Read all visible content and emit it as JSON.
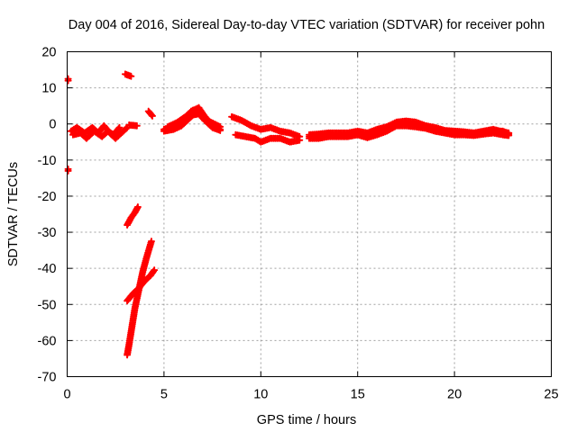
{
  "chart_data": {
    "type": "scatter",
    "title": "Day 004 of 2016, Sidereal Day-to-day VTEC variation (SDTVAR) for receiver pohn",
    "xlabel": "GPS time / hours",
    "ylabel": "SDTVAR / TECUs",
    "xlim": [
      0,
      25
    ],
    "ylim": [
      -70,
      20
    ],
    "xticks": [
      0,
      5,
      10,
      15,
      20,
      25
    ],
    "yticks": [
      -70,
      -60,
      -50,
      -40,
      -30,
      -20,
      -10,
      0,
      10,
      20
    ],
    "x_tick_labels": [
      "0",
      "5",
      "10",
      "15",
      "20",
      "25"
    ],
    "y_tick_labels": [
      "-70",
      "-60",
      "-50",
      "-40",
      "-30",
      "-20",
      "-10",
      "0",
      "10",
      "20"
    ],
    "grid": true,
    "marker": "plus",
    "color": "#ff0000",
    "series": [
      {
        "name": "SDTVAR",
        "tracks": [
          [
            [
              0.05,
              12.5
            ]
          ],
          [
            [
              0.05,
              -12.5
            ]
          ],
          [
            [
              0.2,
              -2
            ],
            [
              0.5,
              -1
            ],
            [
              0.9,
              -2.5
            ],
            [
              1.3,
              -1
            ],
            [
              1.6,
              -2.5
            ],
            [
              1.9,
              -0.5
            ],
            [
              2.2,
              -2.5
            ],
            [
              2.5,
              -4
            ],
            [
              2.9,
              -2
            ],
            [
              3.1,
              -1
            ]
          ],
          [
            [
              0.3,
              -3
            ],
            [
              0.7,
              -2.5
            ],
            [
              1.0,
              -4
            ],
            [
              1.4,
              -2
            ],
            [
              1.8,
              -3.5
            ],
            [
              2.1,
              -2
            ],
            [
              2.4,
              -3
            ],
            [
              2.7,
              -1
            ]
          ],
          [
            [
              3.0,
              13.8
            ],
            [
              3.3,
              13.2
            ]
          ],
          [
            [
              3.2,
              -0.3
            ],
            [
              3.6,
              -0.5
            ]
          ],
          [
            [
              4.2,
              3.5
            ],
            [
              4.4,
              2.2
            ]
          ],
          [
            [
              3.1,
              -28
            ],
            [
              3.3,
              -26
            ],
            [
              3.5,
              -24.5
            ],
            [
              3.65,
              -23
            ]
          ],
          [
            [
              3.1,
              -64
            ],
            [
              3.2,
              -61
            ],
            [
              3.35,
              -56
            ],
            [
              3.5,
              -51
            ],
            [
              3.7,
              -46
            ],
            [
              3.9,
              -41
            ],
            [
              4.1,
              -37
            ],
            [
              4.35,
              -32.5
            ]
          ],
          [
            [
              3.1,
              -49
            ],
            [
              3.4,
              -47
            ],
            [
              3.7,
              -45.5
            ],
            [
              4.0,
              -43.5
            ],
            [
              4.3,
              -42
            ],
            [
              4.5,
              -40.5
            ]
          ],
          [
            [
              5.0,
              -1.5
            ],
            [
              5.5,
              -0.5
            ],
            [
              6.0,
              1
            ],
            [
              6.4,
              3.5
            ],
            [
              6.8,
              4.5
            ],
            [
              7.1,
              2
            ],
            [
              7.5,
              -0.5
            ],
            [
              7.9,
              -1.5
            ]
          ],
          [
            [
              5.0,
              -2
            ],
            [
              5.5,
              -1.5
            ],
            [
              5.9,
              -0.5
            ],
            [
              6.2,
              1
            ],
            [
              6.5,
              2.5
            ],
            [
              6.8,
              2.8
            ],
            [
              7.1,
              1
            ],
            [
              7.5,
              -1
            ],
            [
              7.9,
              -1.8
            ]
          ],
          [
            [
              5.2,
              -0.8
            ],
            [
              5.7,
              0.5
            ],
            [
              6.1,
              2
            ],
            [
              6.5,
              3.8
            ],
            [
              6.9,
              3.5
            ],
            [
              7.3,
              0.8
            ],
            [
              7.9,
              -0.8
            ]
          ],
          [
            [
              8.5,
              2
            ],
            [
              9.0,
              1
            ],
            [
              9.5,
              -0.5
            ],
            [
              10.0,
              -1.5
            ],
            [
              10.5,
              -1
            ],
            [
              11.0,
              -2
            ],
            [
              11.5,
              -2.5
            ],
            [
              12.0,
              -3.5
            ]
          ],
          [
            [
              8.7,
              -3
            ],
            [
              9.2,
              -3.5
            ],
            [
              9.7,
              -4
            ],
            [
              10.0,
              -5
            ],
            [
              10.5,
              -4
            ],
            [
              11.0,
              -4
            ],
            [
              11.5,
              -5
            ],
            [
              12.0,
              -4.5
            ]
          ],
          [
            [
              12.5,
              -3.5
            ],
            [
              13.0,
              -3.5
            ],
            [
              13.5,
              -3
            ],
            [
              14.0,
              -3.2
            ],
            [
              14.5,
              -3
            ],
            [
              15.0,
              -2.5
            ],
            [
              15.5,
              -3.5
            ],
            [
              16.0,
              -2.5
            ],
            [
              16.5,
              -1.5
            ],
            [
              17.0,
              0
            ],
            [
              17.5,
              0.2
            ],
            [
              18.0,
              0
            ],
            [
              18.5,
              -0.5
            ],
            [
              19.0,
              -1.5
            ],
            [
              19.5,
              -2
            ],
            [
              20.0,
              -2.5
            ],
            [
              20.5,
              -2.5
            ],
            [
              21.0,
              -2.8
            ],
            [
              21.5,
              -2.5
            ],
            [
              22.0,
              -2
            ],
            [
              22.5,
              -2
            ],
            [
              22.8,
              -2.8
            ]
          ],
          [
            [
              12.5,
              -3
            ],
            [
              13.0,
              -2.8
            ],
            [
              13.5,
              -2.5
            ],
            [
              14.0,
              -2.5
            ],
            [
              14.5,
              -2.5
            ],
            [
              15.0,
              -2
            ],
            [
              15.5,
              -2.5
            ],
            [
              16.0,
              -1.5
            ],
            [
              16.5,
              -0.8
            ],
            [
              17.0,
              0.5
            ],
            [
              17.5,
              0.8
            ],
            [
              18.0,
              0.5
            ],
            [
              18.5,
              -0.5
            ],
            [
              19.0,
              -1
            ],
            [
              19.5,
              -1.8
            ],
            [
              20.0,
              -2
            ],
            [
              20.5,
              -2.2
            ],
            [
              21.0,
              -2.5
            ],
            [
              21.5,
              -2
            ],
            [
              22.0,
              -1.5
            ],
            [
              22.5,
              -2.2
            ],
            [
              22.8,
              -2.5
            ]
          ],
          [
            [
              12.5,
              -4
            ],
            [
              13.0,
              -4
            ],
            [
              13.5,
              -3.5
            ],
            [
              14.0,
              -3.5
            ],
            [
              14.5,
              -3.5
            ],
            [
              15.0,
              -3
            ],
            [
              15.5,
              -3.8
            ],
            [
              16.0,
              -3
            ],
            [
              16.5,
              -2
            ],
            [
              17.0,
              -0.5
            ],
            [
              17.5,
              -0.5
            ],
            [
              18.0,
              -0.8
            ],
            [
              18.5,
              -1.2
            ],
            [
              19.0,
              -2
            ],
            [
              19.5,
              -2.5
            ],
            [
              20.0,
              -3
            ],
            [
              20.5,
              -3
            ],
            [
              21.0,
              -3.2
            ],
            [
              21.5,
              -2.8
            ],
            [
              22.0,
              -2.5
            ],
            [
              22.5,
              -3
            ],
            [
              22.8,
              -3.2
            ]
          ]
        ]
      }
    ]
  }
}
